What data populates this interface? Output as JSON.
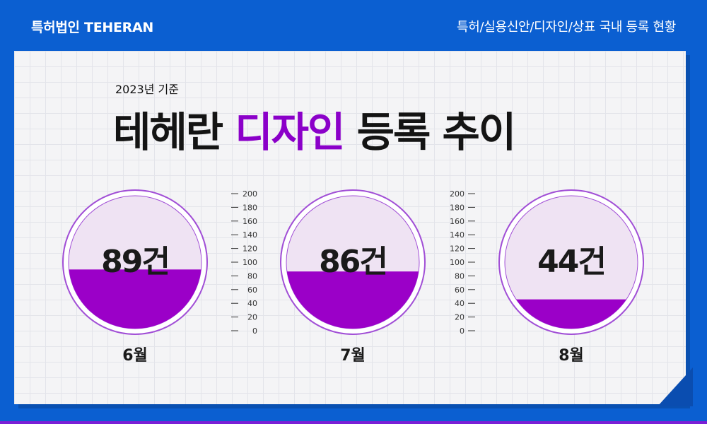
{
  "header": {
    "brand": "특허법인 TEHERAN",
    "subject": "특허/실용신안/디자인/상표 국내 등록 현황"
  },
  "headline": {
    "basis": "2023년 기준",
    "title_part1": "테헤란",
    "title_accent": "디자인",
    "title_part2": "등록 추이"
  },
  "colors": {
    "background": "#0b5fd1",
    "accent": "#8b00c9",
    "fill": "#9b00c8",
    "circle_bg": "#efe3f3",
    "ring": "#a14fd6"
  },
  "chart_data": {
    "type": "gauge",
    "categories": [
      "6월",
      "7월",
      "8월"
    ],
    "values": [
      89,
      86,
      44
    ],
    "value_labels": [
      "89건",
      "86건",
      "44건"
    ],
    "ylim": [
      0,
      200
    ],
    "ticks": [
      0,
      20,
      40,
      60,
      80,
      100,
      120,
      140,
      160,
      180,
      200
    ]
  }
}
